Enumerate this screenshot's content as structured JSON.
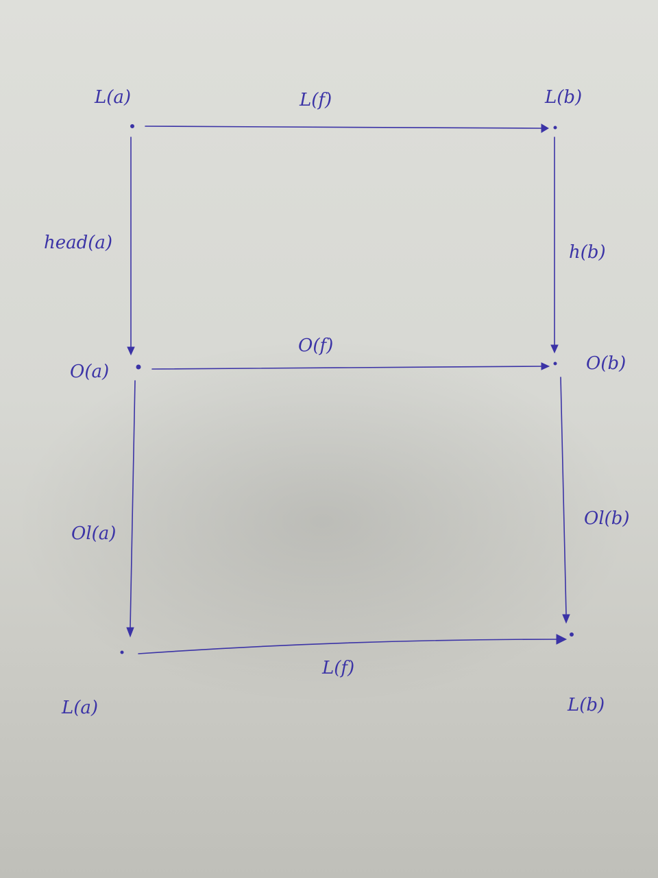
{
  "diagram": {
    "top_left": "L(a)",
    "top_right": "L(b)",
    "top_arrow": "L(f)",
    "left_upper_arrow": "head(a)",
    "right_upper_arrow": "h(b)",
    "middle_left": "O(a)",
    "middle_right": "O(b)",
    "middle_arrow": "O(f)",
    "left_lower_arrow": "Ol(a)",
    "right_lower_arrow": "Ol(b)",
    "bottom_arrow": "L(f)",
    "bottom_left": "L(a)",
    "bottom_right": "L(b)",
    "ink_color": "#3b33a6"
  }
}
